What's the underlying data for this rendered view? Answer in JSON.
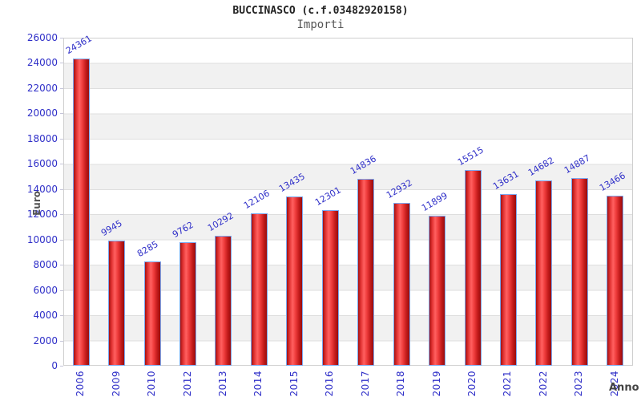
{
  "header": {
    "title": "BUCCINASCO (c.f.03482920158)",
    "subtitle": "Importi"
  },
  "chart_data": {
    "type": "bar",
    "title": "BUCCINASCO (c.f.03482920158)",
    "subtitle": "Importi",
    "xlabel": "Anno",
    "ylabel": "Euro",
    "categories": [
      "2006",
      "2009",
      "2010",
      "2012",
      "2013",
      "2014",
      "2015",
      "2016",
      "2017",
      "2018",
      "2019",
      "2020",
      "2021",
      "2022",
      "2023",
      "2024"
    ],
    "values": [
      24361,
      9945,
      8285,
      9762,
      10292,
      12106,
      13435,
      12301,
      14836,
      12932,
      11899,
      15515,
      13631,
      14682,
      14887,
      13466
    ],
    "ylim": [
      0,
      26000
    ],
    "y_tick_step": 2000,
    "y_ticks": [
      0,
      2000,
      4000,
      6000,
      8000,
      10000,
      12000,
      14000,
      16000,
      18000,
      20000,
      22000,
      24000,
      26000
    ],
    "grid": "horizontal-bands-alternating",
    "legend": "none",
    "value_labels": "above-bars-rotated",
    "colors": {
      "tick_label_blue": "#2f2fc8",
      "value_label_blue": "#2f2fc8",
      "bar_border": "#7aa7f0",
      "band_gray": "#f1f1f1",
      "band_white": "#ffffff",
      "plot_border": "#cfcfcf",
      "axis_name_gray": "#555555",
      "bar_gradient_stops": [
        "#a31111 0%",
        "#e23333 18%",
        "#ff6060 38%",
        "#ee3b3b 58%",
        "#c21b1b 80%",
        "#990d0d 100%"
      ]
    }
  }
}
